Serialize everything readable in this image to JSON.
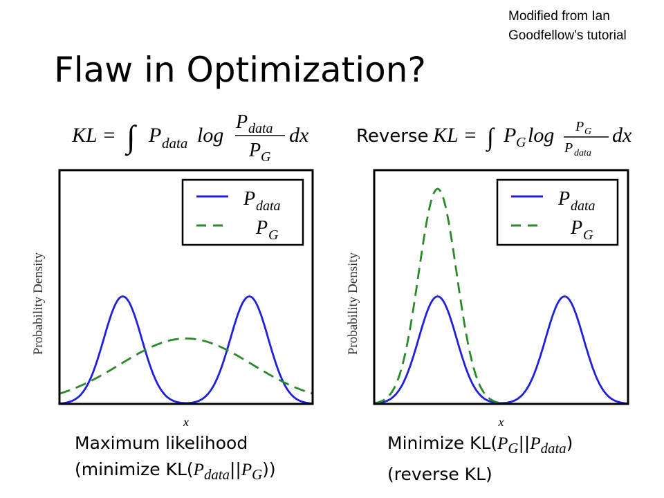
{
  "credit": {
    "line1": "Modified from Ian",
    "line2": "Goodfellow’s tutorial"
  },
  "title": "Flaw in Optimization?",
  "equations": {
    "kl_lhs": "KL =",
    "kl_integrand": "P",
    "kl_sub": "data",
    "kl_log": "log",
    "kl_frac_num": "P",
    "kl_frac_num_sub": "data",
    "kl_frac_den": "P",
    "kl_frac_den_sub": "G",
    "kl_dx": "dx",
    "reverse_word": "Reverse",
    "rkl_lhs": "KL =",
    "rkl_integrand": "P",
    "rkl_sub": "G",
    "rkl_log": "log",
    "rkl_frac_num": "P",
    "rkl_frac_num_sub": "G",
    "rkl_frac_den": "P",
    "rkl_frac_den_sub": "data",
    "rkl_dx": "dx"
  },
  "captions": {
    "left_line1": "Maximum likelihood",
    "left_line2_pre": "(minimize KL(",
    "left_line2_p1": "P",
    "left_line2_s1": "data",
    "left_line2_mid": "||",
    "left_line2_p2": "P",
    "left_line2_s2": "G",
    "left_line2_post": "))",
    "right_line1_pre": "Minimize KL(",
    "right_line1_p1": "P",
    "right_line1_s1": "G",
    "right_line1_mid": "||",
    "right_line1_p2": "P",
    "right_line1_s2": "data",
    "right_line1_post": ")",
    "right_line2": "(reverse KL)"
  },
  "colors": {
    "p_data": "#1f1fdc",
    "p_g": "#2a8a2a",
    "axis": "#000000"
  },
  "chart_data": [
    {
      "type": "line",
      "xlabel": "x",
      "ylabel": "Probability Density",
      "xlim": [
        0,
        1
      ],
      "ylim": [
        0,
        1
      ],
      "legend": {
        "position": "top-right",
        "entries": [
          {
            "name": "P",
            "sub": "data",
            "style": "solid"
          },
          {
            "name": "P",
            "sub": "G",
            "style": "dashed"
          }
        ]
      },
      "series": [
        {
          "name": "P_data",
          "style": "solid",
          "kind": "bimodal",
          "peaks": [
            0.25,
            0.75
          ],
          "sigma": 0.075,
          "height": 0.46
        },
        {
          "name": "P_G",
          "style": "dashed",
          "kind": "unimodal",
          "peaks": [
            0.5
          ],
          "sigma": 0.26,
          "height": 0.28
        }
      ]
    },
    {
      "type": "line",
      "xlabel": "x",
      "ylabel": "Probability Density",
      "xlim": [
        0,
        1
      ],
      "ylim": [
        0,
        1
      ],
      "legend": {
        "position": "top-right",
        "entries": [
          {
            "name": "P",
            "sub": "data",
            "style": "solid"
          },
          {
            "name": "P",
            "sub": "G",
            "style": "dashed"
          }
        ]
      },
      "series": [
        {
          "name": "P_data",
          "style": "solid",
          "kind": "bimodal",
          "peaks": [
            0.25,
            0.75
          ],
          "sigma": 0.075,
          "height": 0.46
        },
        {
          "name": "P_G",
          "style": "dashed",
          "kind": "unimodal",
          "peaks": [
            0.25
          ],
          "sigma": 0.075,
          "height": 0.92
        }
      ]
    }
  ]
}
